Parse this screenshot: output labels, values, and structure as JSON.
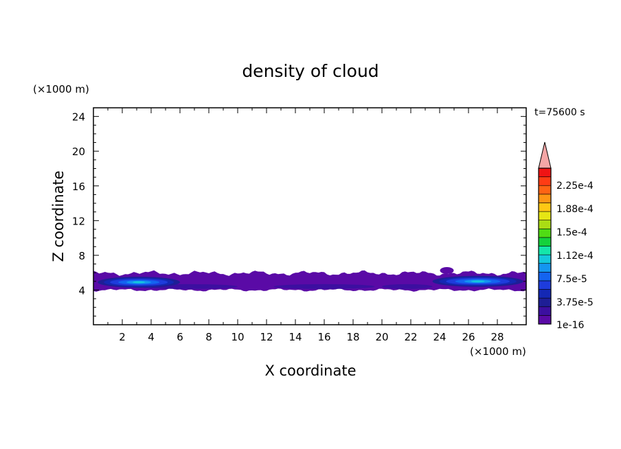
{
  "chart_data": {
    "type": "heatmap",
    "title": "density of cloud",
    "xlabel": "X coordinate",
    "ylabel": "Z coordinate",
    "x_unit": "(×1000 m)",
    "y_unit": "(×1000 m)",
    "time_label": "t=75600 s",
    "xlim": [
      0,
      30
    ],
    "ylim": [
      0,
      25
    ],
    "x_ticks": [
      2,
      4,
      6,
      8,
      10,
      12,
      14,
      16,
      18,
      20,
      22,
      24,
      26,
      28
    ],
    "y_ticks": [
      4,
      8,
      12,
      16,
      20,
      24
    ],
    "colorbar": {
      "labels": [
        "2.25e-4",
        "1.88e-4",
        "1.5e-4",
        "1.12e-4",
        "7.5e-5",
        "3.75e-5",
        "1e-16"
      ],
      "colors": [
        "#5a0aa6",
        "#3c0fa0",
        "#1e1e96",
        "#1428b4",
        "#1e3cdc",
        "#1464f0",
        "#1496f0",
        "#14c8dc",
        "#14e6aa",
        "#14d23c",
        "#50dc14",
        "#aadc14",
        "#e6e614",
        "#ffc814",
        "#ff9614",
        "#ff6414",
        "#ff3c14",
        "#f01414"
      ],
      "extend_color": "#f4a6a6"
    },
    "cloud_layer": {
      "z_bottom": 3.9,
      "z_top": 6.1,
      "x_range": [
        0,
        30
      ],
      "cores": [
        {
          "x_range": [
            0.3,
            6
          ],
          "z": 4.9,
          "max_density": "7.5e-5"
        },
        {
          "x_range": [
            23.5,
            29.8
          ],
          "z": 5.0,
          "max_density": "7.5e-5"
        }
      ]
    }
  }
}
